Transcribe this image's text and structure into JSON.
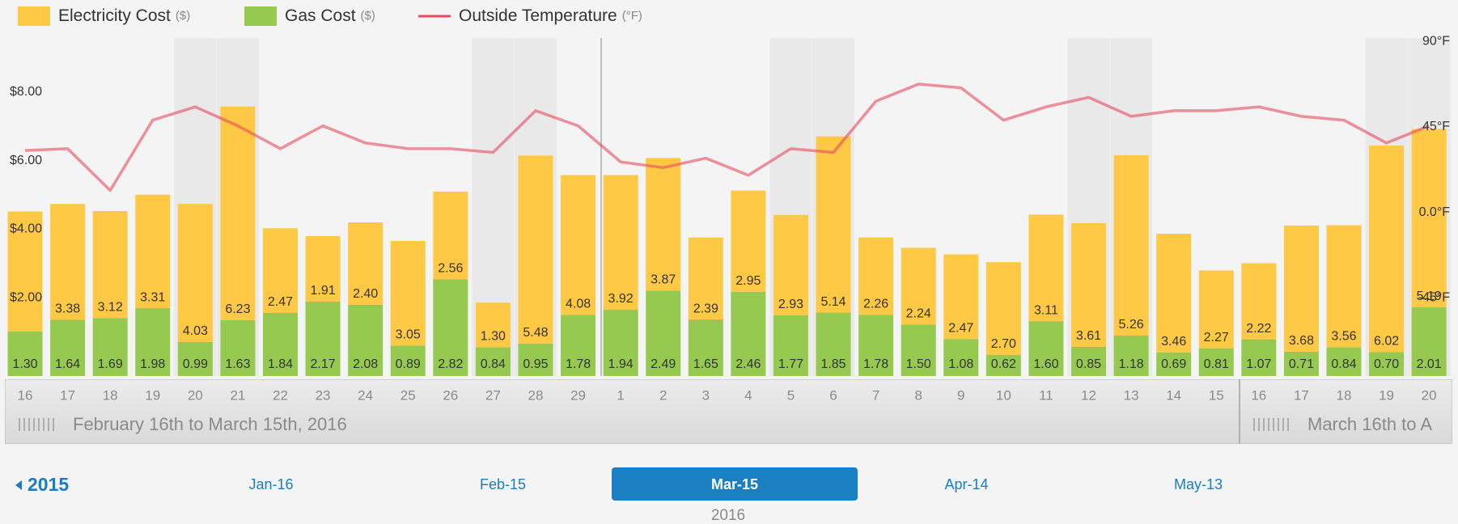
{
  "chart_data": {
    "type": "bar",
    "stacked": true,
    "legend": "top-left",
    "categories": [
      "16",
      "17",
      "18",
      "19",
      "20",
      "21",
      "22",
      "23",
      "24",
      "25",
      "26",
      "27",
      "28",
      "29",
      "1",
      "2",
      "3",
      "4",
      "5",
      "6",
      "7",
      "8",
      "9",
      "10",
      "11",
      "12",
      "13",
      "14",
      "15",
      "16",
      "17",
      "18",
      "19",
      "20"
    ],
    "series": [
      {
        "name": "Electricity Cost",
        "unit": "($)",
        "color": "#ffc845",
        "values": [
          3.5,
          3.38,
          3.12,
          3.31,
          4.03,
          6.23,
          2.47,
          1.91,
          2.4,
          3.05,
          2.56,
          1.3,
          5.48,
          4.08,
          3.92,
          3.87,
          2.39,
          2.95,
          2.93,
          5.14,
          2.26,
          2.24,
          2.47,
          2.7,
          3.11,
          3.61,
          5.26,
          3.46,
          2.27,
          2.22,
          3.68,
          3.56,
          6.02,
          5.19
        ],
        "value_labels": [
          null,
          "3.38",
          "3.12",
          "3.31",
          "4.03",
          "6.23",
          "2.47",
          "1.91",
          "2.40",
          "3.05",
          "2.56",
          "1.30",
          "5.48",
          "4.08",
          "3.92",
          "3.87",
          "2.39",
          "2.95",
          "2.93",
          "5.14",
          "2.26",
          "2.24",
          "2.47",
          "2.70",
          "3.11",
          "3.61",
          "5.26",
          "3.46",
          "2.27",
          "2.22",
          "3.68",
          "3.56",
          "6.02",
          "5.19"
        ]
      },
      {
        "name": "Gas Cost",
        "unit": "($)",
        "color": "#95c94f",
        "values": [
          1.3,
          1.64,
          1.69,
          1.98,
          0.99,
          1.63,
          1.84,
          2.17,
          2.08,
          0.89,
          2.82,
          0.84,
          0.95,
          1.78,
          1.94,
          2.49,
          1.65,
          2.46,
          1.77,
          1.85,
          1.78,
          1.5,
          1.08,
          0.62,
          1.6,
          0.85,
          1.18,
          0.69,
          0.81,
          1.07,
          0.71,
          0.84,
          0.7,
          2.01
        ],
        "value_labels": [
          "1.30",
          "1.64",
          "1.69",
          "1.98",
          "0.99",
          "1.63",
          "1.84",
          "2.17",
          "2.08",
          "0.89",
          "2.82",
          "0.84",
          "0.95",
          "1.78",
          "1.94",
          "2.49",
          "1.65",
          "2.46",
          "1.77",
          "1.85",
          "1.78",
          "1.50",
          "1.08",
          "0.62",
          "1.60",
          "0.85",
          "1.18",
          "0.69",
          "0.81",
          "1.07",
          "0.71",
          "0.84",
          "0.70",
          "2.01"
        ]
      },
      {
        "name": "Outside Temperature",
        "unit": "(°F)",
        "type": "line",
        "axis": "y2",
        "color": "#e84a5f",
        "values": [
          36,
          37,
          15,
          52,
          59,
          49,
          37,
          49,
          40,
          37,
          37,
          35,
          57,
          49,
          30,
          27,
          32,
          23,
          37,
          35,
          62,
          71,
          69,
          52,
          59,
          64,
          54,
          57,
          57,
          59,
          54,
          52,
          40,
          49
        ]
      }
    ],
    "ylim": [
      0,
      10
    ],
    "yticks": [
      {
        "value": 2,
        "label": "$2.00"
      },
      {
        "value": 4,
        "label": "$4.00"
      },
      {
        "value": 6,
        "label": "$6.00"
      },
      {
        "value": 8,
        "label": "$8.00"
      }
    ],
    "y2lim": [
      -82.7,
      97.8
    ],
    "y2ticks": [
      {
        "value": -45,
        "label": "-45°F"
      },
      {
        "value": 0,
        "label": "0.0°F"
      },
      {
        "value": 45,
        "label": "45°F"
      },
      {
        "value": 90,
        "label": "90°F"
      }
    ]
  },
  "timeline": {
    "periods": [
      "February 16th to March 15th, 2016",
      "March 16th to A"
    ],
    "prev": "2015",
    "months": [
      "Jan-16",
      "Feb-15",
      "Mar-15",
      "Apr-14",
      "May-13"
    ],
    "selected": 2,
    "year": "2016"
  }
}
